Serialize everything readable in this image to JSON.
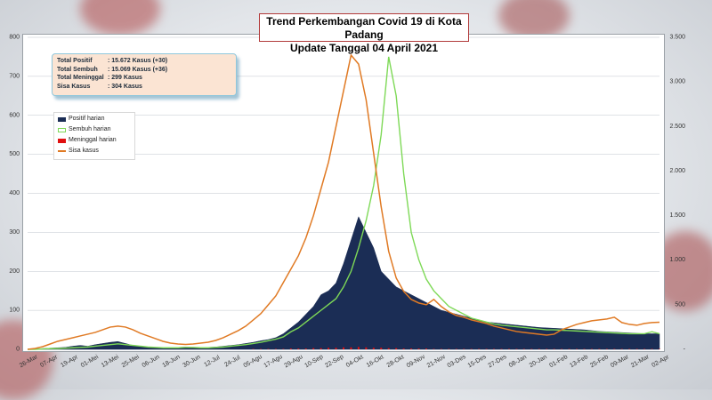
{
  "title_line1": "Trend Perkembangan Covid 19 di Kota Padang",
  "title_line2": "Update Tanggal  04 April 2021",
  "summary": [
    {
      "label": "Total Positif",
      "value": ": 15.672 Kasus (+30)"
    },
    {
      "label": "Total Sembuh",
      "value": ": 15.069 Kasus (+36)"
    },
    {
      "label": "Total Meninggal",
      "value": ":      299  Kasus"
    },
    {
      "label": "Sisa Kasus",
      "value": ":      304  Kasus"
    }
  ],
  "colors": {
    "positif": "#1b2d55",
    "sembuh": "#7ed957",
    "meninggal": "#e01010",
    "sisa": "#e07a24"
  },
  "chart_data": {
    "type": "area",
    "title": "",
    "x_tick_labels": [
      "26-Mar",
      "07-Apr",
      "19-Apr",
      "01-Mei",
      "13-Mei",
      "25-Mei",
      "06-Jun",
      "18-Jun",
      "30-Jun",
      "12-Jul",
      "24-Jul",
      "05-Agu",
      "17-Agu",
      "29-Agu",
      "10-Sep",
      "22-Sep",
      "04-Okt",
      "16-Okt",
      "28-Okt",
      "09-Nov",
      "21-Nov",
      "03-Des",
      "15-Des",
      "27-Des",
      "08-Jan",
      "20-Jan",
      "01-Feb",
      "13-Feb",
      "25-Feb",
      "09-Mar",
      "21-Mar",
      "02-Apr"
    ],
    "y_left_ticks": [
      "0",
      "100",
      "200",
      "300",
      "400",
      "500",
      "600",
      "700",
      "800"
    ],
    "y_left_range": [
      0,
      800
    ],
    "y_right_ticks": [
      "-",
      "500",
      "1.000",
      "1.500",
      "2.000",
      "2.500",
      "3.000",
      "3.500"
    ],
    "y_right_range": [
      0,
      3500
    ],
    "grid": "horizontal",
    "legend_placement": "top-left",
    "series": [
      {
        "name": "Positif harian",
        "style": "area",
        "axis": "left",
        "values": [
          0,
          1,
          2,
          3,
          4,
          5,
          8,
          10,
          8,
          12,
          15,
          18,
          20,
          15,
          10,
          8,
          6,
          5,
          4,
          4,
          5,
          6,
          5,
          4,
          5,
          6,
          8,
          10,
          12,
          15,
          18,
          22,
          25,
          30,
          40,
          55,
          70,
          90,
          110,
          140,
          150,
          170,
          220,
          280,
          340,
          300,
          260,
          200,
          180,
          160,
          150,
          140,
          130,
          120,
          110,
          100,
          95,
          90,
          85,
          80,
          75,
          70,
          68,
          66,
          64,
          62,
          60,
          58,
          56,
          55,
          54,
          53,
          52,
          51,
          50,
          48,
          46,
          45,
          44,
          43,
          42,
          41,
          40,
          40,
          40
        ]
      },
      {
        "name": "Sembuh harian",
        "style": "line",
        "axis": "left",
        "values": [
          0,
          0,
          1,
          2,
          2,
          3,
          4,
          5,
          6,
          8,
          10,
          12,
          14,
          12,
          10,
          8,
          6,
          5,
          4,
          4,
          4,
          5,
          5,
          4,
          4,
          5,
          6,
          8,
          10,
          12,
          15,
          18,
          22,
          26,
          32,
          45,
          55,
          70,
          85,
          100,
          115,
          130,
          160,
          200,
          260,
          330,
          420,
          550,
          750,
          650,
          450,
          300,
          230,
          180,
          150,
          130,
          110,
          100,
          90,
          80,
          75,
          70,
          65,
          62,
          60,
          58,
          56,
          54,
          52,
          50,
          50,
          49,
          48,
          47,
          46,
          45,
          44,
          43,
          42,
          41,
          40,
          40,
          40,
          45,
          40
        ]
      },
      {
        "name": "Meninggal harian",
        "style": "bar",
        "axis": "left",
        "values": [
          0,
          0,
          0,
          0,
          0,
          0,
          0,
          0,
          0,
          0,
          0,
          0,
          0,
          0,
          0,
          0,
          0,
          0,
          0,
          0,
          0,
          0,
          0,
          0,
          0,
          0,
          0,
          0,
          0,
          0,
          1,
          1,
          1,
          1,
          1,
          2,
          2,
          2,
          3,
          3,
          4,
          4,
          5,
          5,
          6,
          5,
          4,
          4,
          3,
          3,
          2,
          2,
          2,
          2,
          1,
          1,
          1,
          1,
          1,
          1,
          1,
          1,
          1,
          1,
          1,
          1,
          1,
          1,
          1,
          1,
          1,
          1,
          1,
          1,
          1,
          1,
          1,
          1,
          1,
          1,
          1,
          1,
          1,
          1,
          1
        ]
      },
      {
        "name": "Sisa kasus",
        "style": "line",
        "axis": "right",
        "values": [
          0,
          10,
          30,
          60,
          90,
          110,
          130,
          150,
          170,
          190,
          220,
          250,
          260,
          250,
          220,
          180,
          150,
          120,
          90,
          70,
          60,
          55,
          60,
          70,
          80,
          100,
          130,
          170,
          210,
          260,
          330,
          400,
          500,
          600,
          750,
          900,
          1050,
          1250,
          1500,
          1800,
          2100,
          2500,
          2900,
          3300,
          3200,
          2800,
          2200,
          1600,
          1100,
          800,
          650,
          560,
          520,
          500,
          560,
          480,
          420,
          380,
          360,
          330,
          310,
          290,
          260,
          240,
          220,
          200,
          190,
          180,
          170,
          160,
          170,
          220,
          250,
          280,
          300,
          320,
          330,
          340,
          360,
          300,
          280,
          270,
          290,
          300,
          304
        ]
      }
    ]
  }
}
